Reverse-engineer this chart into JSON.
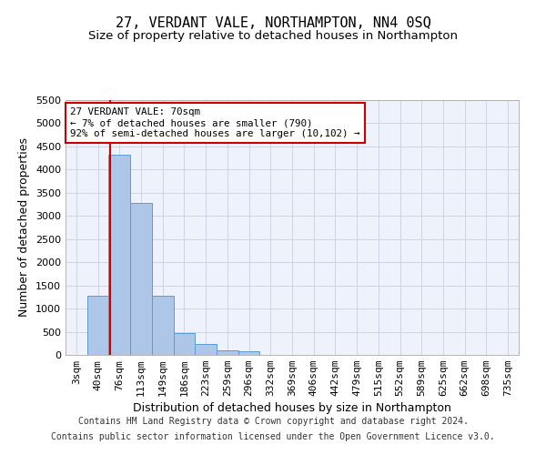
{
  "title": "27, VERDANT VALE, NORTHAMPTON, NN4 0SQ",
  "subtitle": "Size of property relative to detached houses in Northampton",
  "xlabel": "Distribution of detached houses by size in Northampton",
  "ylabel": "Number of detached properties",
  "footer_line1": "Contains HM Land Registry data © Crown copyright and database right 2024.",
  "footer_line2": "Contains public sector information licensed under the Open Government Licence v3.0.",
  "annotation_title": "27 VERDANT VALE: 70sqm",
  "annotation_line1": "← 7% of detached houses are smaller (790)",
  "annotation_line2": "92% of semi-detached houses are larger (10,102) →",
  "bar_labels": [
    "3sqm",
    "40sqm",
    "76sqm",
    "113sqm",
    "149sqm",
    "186sqm",
    "223sqm",
    "259sqm",
    "296sqm",
    "332sqm",
    "369sqm",
    "406sqm",
    "442sqm",
    "479sqm",
    "515sqm",
    "552sqm",
    "589sqm",
    "625sqm",
    "662sqm",
    "698sqm",
    "735sqm"
  ],
  "bar_values": [
    0,
    1270,
    4330,
    3280,
    1270,
    480,
    230,
    100,
    70,
    0,
    0,
    0,
    0,
    0,
    0,
    0,
    0,
    0,
    0,
    0,
    0
  ],
  "bar_color": "#aec6e8",
  "bar_edge_color": "#5b9bd5",
  "vline_x": 1.55,
  "vline_color": "#cc0000",
  "ylim": [
    0,
    5500
  ],
  "yticks": [
    0,
    500,
    1000,
    1500,
    2000,
    2500,
    3000,
    3500,
    4000,
    4500,
    5000,
    5500
  ],
  "plot_bg_color": "#eef2fa",
  "grid_color": "#c8d0e0",
  "title_fontsize": 11,
  "subtitle_fontsize": 9.5,
  "label_fontsize": 9,
  "tick_fontsize": 8,
  "footer_fontsize": 7
}
